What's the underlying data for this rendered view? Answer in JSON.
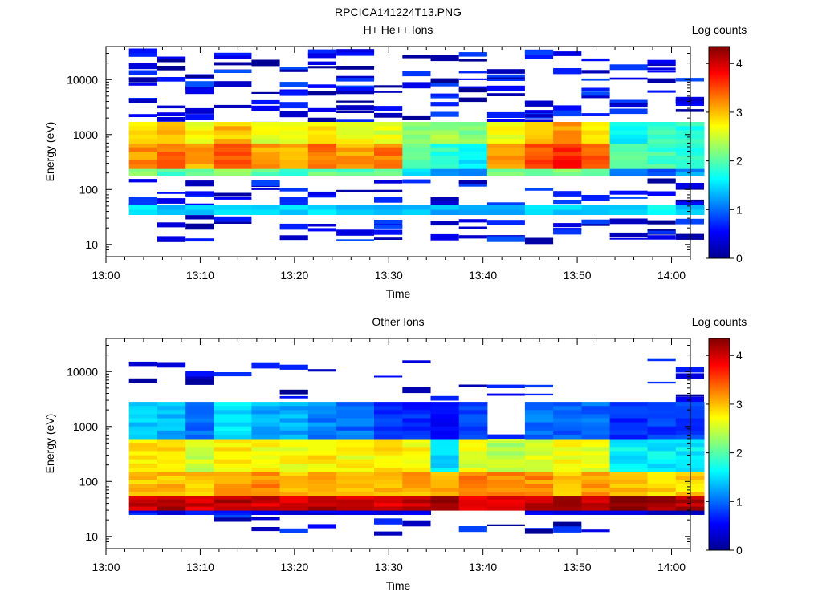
{
  "figure_title": "RPCICA141224T13.PNG",
  "colormap": [
    "#00008f",
    "#0000ff",
    "#0080ff",
    "#00ffff",
    "#80ff80",
    "#ffff00",
    "#ff8000",
    "#ff0000",
    "#800000"
  ],
  "chart_data": [
    {
      "type": "heatmap",
      "title": "H+ He++ Ions",
      "xlabel": "Time",
      "ylabel": "Energy (eV)",
      "colorbar_label": "Log counts",
      "yscale": "log",
      "ylim": [
        6,
        40000
      ],
      "xlim": [
        "13:00",
        "14:02"
      ],
      "x_ticks": [
        "13:00",
        "13:10",
        "13:20",
        "13:30",
        "13:40",
        "13:50",
        "14:00"
      ],
      "y_ticks": [
        "10",
        "100",
        "1000",
        "10000"
      ],
      "clim": [
        0,
        4.35
      ],
      "colorbar_ticks": [
        "0",
        "1",
        "2",
        "3",
        "4"
      ],
      "time_bins": [
        "13:01",
        "13:04",
        "13:07",
        "13:10",
        "13:14",
        "13:17",
        "13:20",
        "13:23",
        "13:27",
        "13:30",
        "13:33",
        "13:36",
        "13:39",
        "13:43",
        "13:46",
        "13:49",
        "13:52",
        "13:56",
        "13:59",
        "14:02"
      ],
      "background_bands": [
        {
          "e_low": 35,
          "e_high": 52,
          "values": [
            1.6,
            1.4,
            1.5,
            1.4,
            1.5,
            1.4,
            1.5,
            1.4,
            1.3,
            1.4,
            1.3,
            1.4,
            1.3,
            1.4,
            1.4,
            1.5,
            1.3,
            1.6,
            1.4
          ]
        },
        {
          "e_low": 52,
          "e_high": 180,
          "values": [
            0.05,
            0.05,
            0.05,
            0.05,
            0.05,
            0.05,
            0.05,
            0.05,
            0.05,
            0.05,
            0.05,
            0.05,
            0.05,
            0.05,
            0.05,
            0.05,
            0.05,
            0.05,
            0.05
          ]
        },
        {
          "e_low": 180,
          "e_high": 240,
          "values": [
            2.2,
            2.0,
            2.0,
            2.3,
            2.0,
            1.9,
            2.1,
            2.0,
            2.0,
            1.5,
            1.3,
            1.2,
            2.2,
            2.1,
            2.2,
            2.0,
            1.2,
            0.9,
            1.2
          ]
        },
        {
          "e_low": 240,
          "e_high": 700,
          "values": [
            3.2,
            3.3,
            3.1,
            3.5,
            3.1,
            3.0,
            3.3,
            3.1,
            3.3,
            2.1,
            1.8,
            1.6,
            3.1,
            3.5,
            3.7,
            3.4,
            2.0,
            1.9,
            1.8
          ]
        },
        {
          "e_low": 700,
          "e_high": 1700,
          "values": [
            2.8,
            3.0,
            2.7,
            3.0,
            2.6,
            2.6,
            2.8,
            2.7,
            2.6,
            2.3,
            2.3,
            2.2,
            2.7,
            3.0,
            3.1,
            2.8,
            1.6,
            1.9,
            1.8
          ]
        }
      ],
      "sparse_lines": "low-level scattered counts between 10 eV and 40000 eV"
    },
    {
      "type": "heatmap",
      "title": "Other Ions",
      "xlabel": "Time",
      "ylabel": "Energy (eV)",
      "colorbar_label": "Log counts",
      "yscale": "log",
      "ylim": [
        6,
        40000
      ],
      "xlim": [
        "13:00",
        "14:02"
      ],
      "x_ticks": [
        "13:00",
        "13:10",
        "13:20",
        "13:30",
        "13:40",
        "13:50",
        "14:00"
      ],
      "y_ticks": [
        "10",
        "100",
        "1000",
        "10000"
      ],
      "clim": [
        0,
        4.35
      ],
      "colorbar_ticks": [
        "0",
        "1",
        "2",
        "3",
        "4"
      ],
      "time_bins": [
        "13:01",
        "13:04",
        "13:07",
        "13:10",
        "13:14",
        "13:17",
        "13:20",
        "13:23",
        "13:27",
        "13:30",
        "13:33",
        "13:36",
        "13:39",
        "13:43",
        "13:46",
        "13:49",
        "13:52",
        "13:56",
        "13:59",
        "14:02"
      ],
      "background_bands": [
        {
          "e_low": 25,
          "e_high": 30,
          "values": [
            0.6,
            0.4,
            0.5,
            0.5,
            0.4,
            0.4,
            0.4,
            0.5,
            0.4,
            0.5,
            0.0,
            0.0,
            0.0,
            0.5,
            0.4,
            0.5,
            0.4,
            0.2,
            0.3
          ]
        },
        {
          "e_low": 30,
          "e_high": 55,
          "values": [
            4.0,
            4.1,
            4.0,
            4.1,
            4.0,
            4.0,
            4.1,
            4.0,
            4.0,
            4.1,
            4.2,
            3.8,
            3.9,
            4.1,
            4.2,
            4.0,
            4.3,
            4.2,
            4.1
          ]
        },
        {
          "e_low": 55,
          "e_high": 150,
          "values": [
            3.0,
            3.0,
            3.0,
            3.1,
            3.2,
            3.0,
            3.0,
            3.0,
            3.0,
            3.1,
            3.1,
            3.3,
            3.2,
            3.2,
            3.0,
            3.1,
            3.0,
            2.9,
            2.9
          ]
        },
        {
          "e_low": 150,
          "e_high": 600,
          "values": [
            2.8,
            2.9,
            2.5,
            2.8,
            2.7,
            2.7,
            2.8,
            2.7,
            2.8,
            2.7,
            1.5,
            2.6,
            2.4,
            2.6,
            2.7,
            2.6,
            1.6,
            1.6,
            1.6
          ]
        },
        {
          "e_low": 600,
          "e_high": 2800,
          "values": [
            1.4,
            1.3,
            1.0,
            1.5,
            1.3,
            1.3,
            1.1,
            1.0,
            0.8,
            0.7,
            0.6,
            0.9,
            0.0,
            1.0,
            0.9,
            1.0,
            0.7,
            0.8,
            0.8
          ]
        }
      ],
      "sparse_lines": "low-level scattered counts between 10 eV and 20000 eV"
    }
  ]
}
